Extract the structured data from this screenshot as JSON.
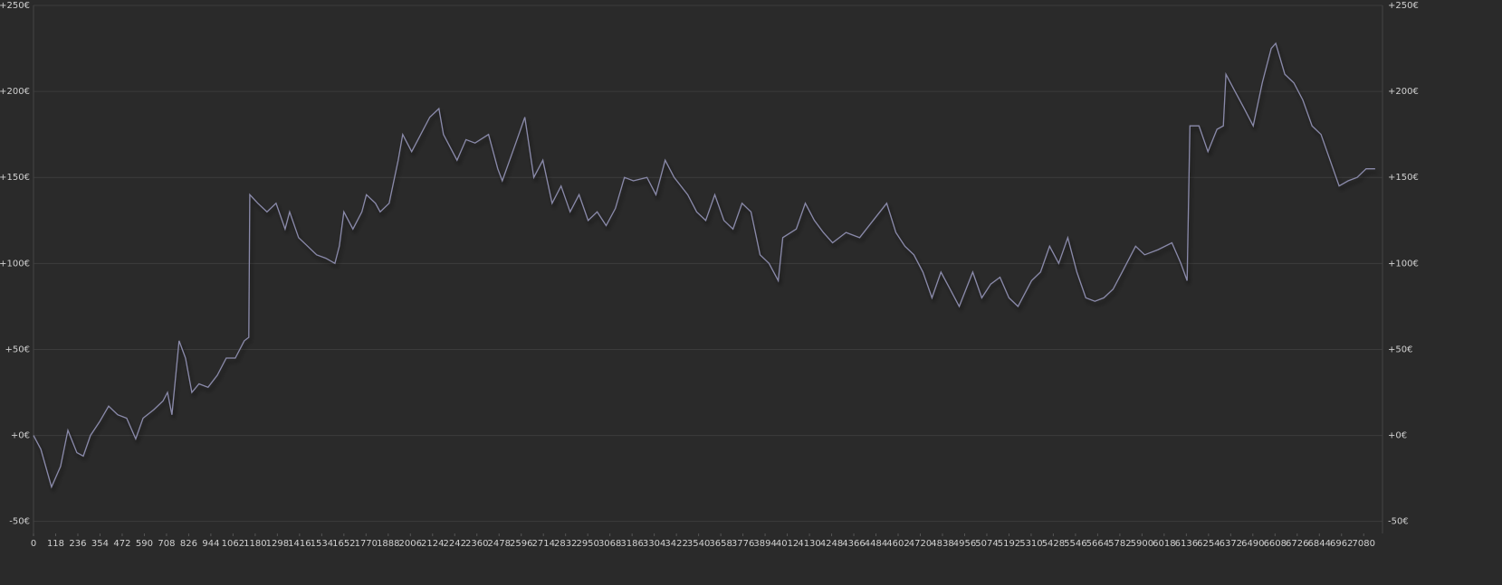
{
  "chart_data": {
    "type": "line",
    "x": [
      0,
      39,
      96,
      144,
      183,
      231,
      265,
      303,
      352,
      400,
      448,
      496,
      544,
      583,
      641,
      689,
      713,
      737,
      775,
      809,
      843,
      881,
      929,
      978,
      1026,
      1074,
      1122,
      1146,
      1151,
      1194,
      1243,
      1291,
      1339,
      1363,
      1411,
      1459,
      1507,
      1556,
      1604,
      1628,
      1652,
      1700,
      1748,
      1772,
      1820,
      1845,
      1893,
      1941,
      1965,
      2013,
      2061,
      2109,
      2158,
      2182,
      2254,
      2302,
      2350,
      2422,
      2471,
      2495,
      2567,
      2615,
      2663,
      2711,
      2760,
      2808,
      2856,
      2904,
      2952,
      3000,
      3048,
      3097,
      3145,
      3193,
      3265,
      3313,
      3362,
      3410,
      3482,
      3530,
      3578,
      3626,
      3675,
      3723,
      3771,
      3819,
      3867,
      3915,
      3964,
      3988,
      4060,
      4108,
      4156,
      4204,
      4253,
      4325,
      4397,
      4469,
      4541,
      4590,
      4638,
      4686,
      4734,
      4782,
      4830,
      4879,
      4927,
      4999,
      5047,
      5095,
      5144,
      5192,
      5240,
      5312,
      5360,
      5408,
      5457,
      5505,
      5553,
      5601,
      5649,
      5697,
      5746,
      5794,
      5866,
      5914,
      5986,
      6059,
      6107,
      6140,
      6155,
      6203,
      6251,
      6299,
      6333,
      6347,
      6395,
      6444,
      6492,
      6540,
      6588,
      6612,
      6660,
      6708,
      6756,
      6805,
      6853,
      6901,
      6949,
      6997,
      7045,
      7093,
      7141
    ],
    "series": [
      {
        "color": "#8a8aaa",
        "values": [
          0,
          -8,
          -30,
          -18,
          3,
          -10,
          -12,
          0,
          8,
          17,
          12,
          10,
          -2,
          10,
          15,
          20,
          25,
          12,
          55,
          45,
          25,
          30,
          28,
          35,
          45,
          45,
          55,
          57,
          140,
          135,
          130,
          135,
          120,
          130,
          115,
          110,
          105,
          103,
          100,
          110,
          130,
          120,
          130,
          140,
          135,
          130,
          135,
          160,
          175,
          165,
          175,
          185,
          190,
          175,
          160,
          172,
          170,
          175,
          155,
          148,
          170,
          185,
          150,
          160,
          135,
          145,
          130,
          140,
          125,
          130,
          122,
          132,
          150,
          148,
          150,
          140,
          160,
          150,
          140,
          130,
          125,
          140,
          125,
          120,
          135,
          130,
          105,
          100,
          90,
          115,
          120,
          135,
          125,
          118,
          112,
          118,
          115,
          125,
          135,
          118,
          110,
          105,
          95,
          80,
          95,
          85,
          75,
          95,
          80,
          88,
          92,
          80,
          75,
          90,
          95,
          110,
          100,
          115,
          95,
          80,
          78,
          80,
          85,
          95,
          110,
          105,
          108,
          112,
          100,
          90,
          180,
          180,
          165,
          178,
          180,
          210,
          200,
          190,
          180,
          205,
          225,
          228,
          210,
          205,
          195,
          180,
          175,
          160,
          145,
          148,
          150,
          155,
          155
        ]
      }
    ],
    "xlim": [
      0,
      7180
    ],
    "ylim": [
      -57,
      250
    ],
    "xticks": [
      0,
      118,
      236,
      354,
      472,
      590,
      708,
      826,
      944,
      1062,
      1180,
      1298,
      1416,
      1534,
      1652,
      1770,
      1888,
      2006,
      2124,
      2242,
      2360,
      2478,
      2596,
      2714,
      2832,
      2950,
      3068,
      3186,
      3304,
      3422,
      3540,
      3658,
      3776,
      3894,
      4012,
      4130,
      4248,
      4366,
      4484,
      4602,
      4720,
      4838,
      4956,
      5074,
      5192,
      5310,
      5428,
      5546,
      5664,
      5782,
      5900,
      6018,
      6136,
      6254,
      6372,
      6490,
      6608,
      6726,
      6844,
      6962,
      7080
    ],
    "yticks": [
      {
        "value": -50,
        "label": "-50€"
      },
      {
        "value": 0,
        "label": "+0€"
      },
      {
        "value": 50,
        "label": "+50€"
      },
      {
        "value": 100,
        "label": "+100€"
      },
      {
        "value": 150,
        "label": "+150€"
      },
      {
        "value": 200,
        "label": "+200€"
      },
      {
        "value": 250,
        "label": "+250€"
      }
    ],
    "grid": true
  }
}
